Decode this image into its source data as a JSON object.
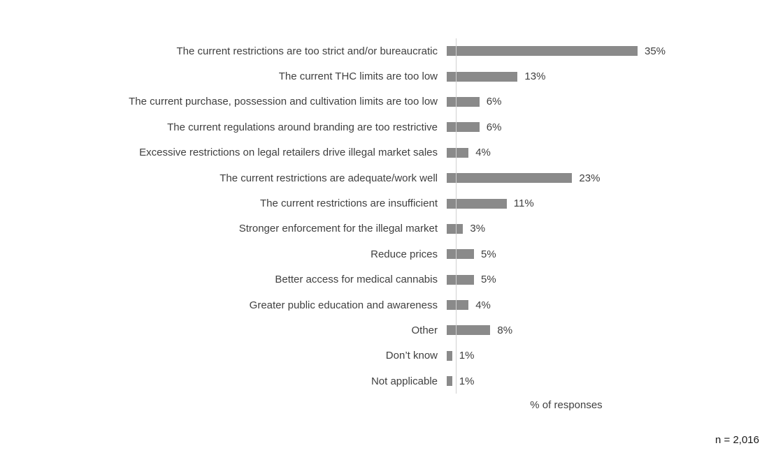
{
  "chart_data": {
    "type": "bar",
    "orientation": "horizontal",
    "title": "",
    "xlabel": "% of responses",
    "ylabel": "",
    "xlim": [
      0,
      38
    ],
    "grid": false,
    "legend": false,
    "bar_color": "#8a8a8a",
    "axis_line_color": "#d0d0d0",
    "categories": [
      "The current restrictions are too strict and/or bureaucratic",
      "The current THC limits are too low",
      "The current purchase, possession and cultivation limits are too low",
      "The current regulations around branding are too restrictive",
      "Excessive restrictions on legal retailers drive illegal market sales",
      "The current restrictions are adequate/work well",
      "The current restrictions are insufficient",
      "Stronger enforcement for the illegal market",
      "Reduce prices",
      "Better access for medical cannabis",
      "Greater public education and awareness",
      "Other",
      "Don’t know",
      "Not applicable"
    ],
    "values": [
      35,
      13,
      6,
      6,
      4,
      23,
      11,
      3,
      5,
      5,
      4,
      8,
      1,
      1
    ],
    "value_labels": [
      "35%",
      "13%",
      "6%",
      "6%",
      "4%",
      "23%",
      "11%",
      "3%",
      "5%",
      "5%",
      "4%",
      "8%",
      "1%",
      "1%"
    ],
    "note": "n = 2,016"
  }
}
